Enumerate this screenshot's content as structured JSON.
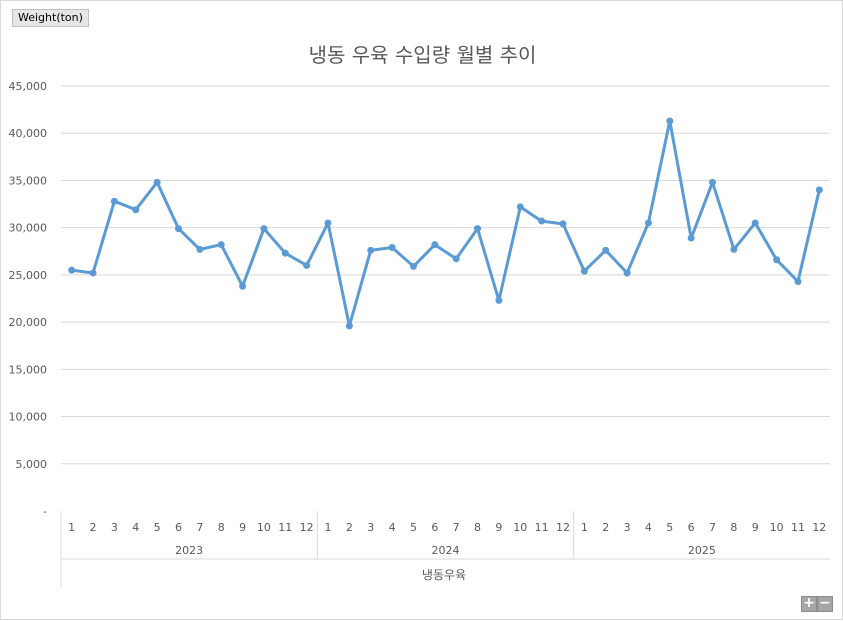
{
  "field_button": {
    "label": "Weight(ton)"
  },
  "zoom": {
    "plus": "+",
    "minus": "−"
  },
  "chart_data": {
    "type": "line",
    "title": "냉동 우육 수입량 월별 추이",
    "xlabel": "냉동우육",
    "ylabel": "",
    "ylim": [
      0,
      45000
    ],
    "yticks": [
      "-",
      "5,000",
      "10,000",
      "15,000",
      "20,000",
      "25,000",
      "30,000",
      "35,000",
      "40,000",
      "45,000"
    ],
    "grid": true,
    "line_color": "#5b9bd5",
    "groups": [
      {
        "label": "2023",
        "months": [
          "1",
          "2",
          "3",
          "4",
          "5",
          "6",
          "7",
          "8",
          "9",
          "10",
          "11",
          "12"
        ]
      },
      {
        "label": "2024",
        "months": [
          "1",
          "2",
          "3",
          "4",
          "5",
          "6",
          "7",
          "8",
          "9",
          "10",
          "11",
          "12"
        ]
      },
      {
        "label": "2025",
        "months": [
          "1",
          "2",
          "3",
          "4",
          "5",
          "6",
          "7",
          "8",
          "9",
          "10",
          "11",
          "12"
        ]
      }
    ],
    "values": [
      25500,
      25200,
      32800,
      31900,
      34800,
      29900,
      27700,
      28200,
      23800,
      29900,
      27300,
      26000,
      30500,
      19600,
      27600,
      27900,
      25900,
      28200,
      26700,
      29900,
      22300,
      32200,
      30700,
      30400,
      25400,
      27600,
      25200,
      30500,
      41300,
      28900,
      34800,
      27700,
      30500,
      26600,
      24300,
      34000
    ]
  }
}
